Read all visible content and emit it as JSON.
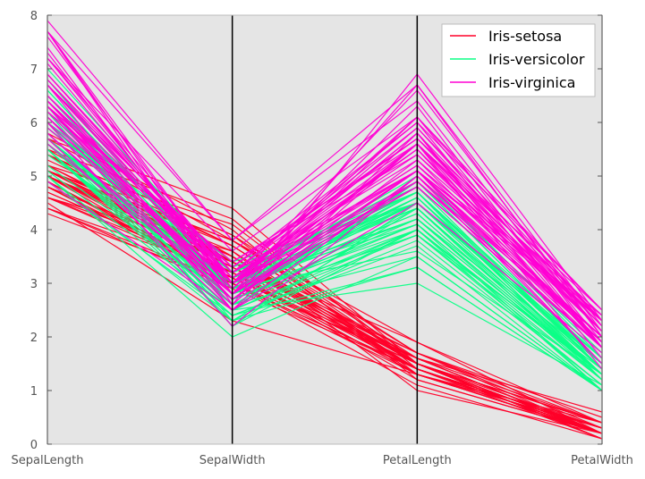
{
  "chart_data": {
    "type": "line",
    "subtype": "parallel-coordinates",
    "title": "",
    "xlabel": "",
    "ylabel": "",
    "axes": [
      "SepalLength",
      "SepalWidth",
      "PetalLength",
      "PetalWidth"
    ],
    "ylim": [
      0,
      8
    ],
    "yticks": [
      0,
      1,
      2,
      3,
      4,
      5,
      6,
      7,
      8
    ],
    "grid": false,
    "background": "#e5e5e5",
    "legend_position": "top-right",
    "series": [
      {
        "name": "Iris-setosa",
        "color": "#ff0029",
        "rows": [
          [
            5.1,
            3.5,
            1.4,
            0.2
          ],
          [
            4.9,
            3.0,
            1.4,
            0.2
          ],
          [
            4.7,
            3.2,
            1.3,
            0.2
          ],
          [
            4.6,
            3.1,
            1.5,
            0.2
          ],
          [
            5.0,
            3.6,
            1.4,
            0.2
          ],
          [
            5.4,
            3.9,
            1.7,
            0.4
          ],
          [
            4.6,
            3.4,
            1.4,
            0.3
          ],
          [
            5.0,
            3.4,
            1.5,
            0.2
          ],
          [
            4.4,
            2.9,
            1.4,
            0.2
          ],
          [
            4.9,
            3.1,
            1.5,
            0.1
          ],
          [
            5.4,
            3.7,
            1.5,
            0.2
          ],
          [
            4.8,
            3.4,
            1.6,
            0.2
          ],
          [
            4.8,
            3.0,
            1.4,
            0.1
          ],
          [
            4.3,
            3.0,
            1.1,
            0.1
          ],
          [
            5.8,
            4.0,
            1.2,
            0.2
          ],
          [
            5.7,
            4.4,
            1.5,
            0.4
          ],
          [
            5.4,
            3.9,
            1.3,
            0.4
          ],
          [
            5.1,
            3.5,
            1.4,
            0.3
          ],
          [
            5.7,
            3.8,
            1.7,
            0.3
          ],
          [
            5.1,
            3.8,
            1.5,
            0.3
          ],
          [
            5.4,
            3.4,
            1.7,
            0.2
          ],
          [
            5.1,
            3.7,
            1.5,
            0.4
          ],
          [
            4.6,
            3.6,
            1.0,
            0.2
          ],
          [
            5.1,
            3.3,
            1.7,
            0.5
          ],
          [
            4.8,
            3.4,
            1.9,
            0.2
          ],
          [
            5.0,
            3.0,
            1.6,
            0.2
          ],
          [
            5.0,
            3.4,
            1.6,
            0.4
          ],
          [
            5.2,
            3.5,
            1.5,
            0.2
          ],
          [
            5.2,
            3.4,
            1.4,
            0.2
          ],
          [
            4.7,
            3.2,
            1.6,
            0.2
          ],
          [
            4.8,
            3.1,
            1.6,
            0.2
          ],
          [
            5.4,
            3.4,
            1.5,
            0.4
          ],
          [
            5.2,
            4.1,
            1.5,
            0.1
          ],
          [
            5.5,
            4.2,
            1.4,
            0.2
          ],
          [
            4.9,
            3.1,
            1.5,
            0.1
          ],
          [
            5.0,
            3.2,
            1.2,
            0.2
          ],
          [
            5.5,
            3.5,
            1.3,
            0.2
          ],
          [
            4.9,
            3.1,
            1.5,
            0.1
          ],
          [
            4.4,
            3.0,
            1.3,
            0.2
          ],
          [
            5.1,
            3.4,
            1.5,
            0.2
          ],
          [
            5.0,
            3.5,
            1.3,
            0.3
          ],
          [
            4.5,
            2.3,
            1.3,
            0.3
          ],
          [
            4.4,
            3.2,
            1.3,
            0.2
          ],
          [
            5.0,
            3.5,
            1.6,
            0.6
          ],
          [
            5.1,
            3.8,
            1.9,
            0.4
          ],
          [
            4.8,
            3.0,
            1.4,
            0.3
          ],
          [
            5.1,
            3.8,
            1.6,
            0.2
          ],
          [
            4.6,
            3.2,
            1.4,
            0.2
          ],
          [
            5.3,
            3.7,
            1.5,
            0.2
          ],
          [
            5.0,
            3.3,
            1.4,
            0.2
          ]
        ]
      },
      {
        "name": "Iris-versicolor",
        "color": "#0bff86",
        "rows": [
          [
            7.0,
            3.2,
            4.7,
            1.4
          ],
          [
            6.4,
            3.2,
            4.5,
            1.5
          ],
          [
            6.9,
            3.1,
            4.9,
            1.5
          ],
          [
            5.5,
            2.3,
            4.0,
            1.3
          ],
          [
            6.5,
            2.8,
            4.6,
            1.5
          ],
          [
            5.7,
            2.8,
            4.5,
            1.3
          ],
          [
            6.3,
            3.3,
            4.7,
            1.6
          ],
          [
            4.9,
            2.4,
            3.3,
            1.0
          ],
          [
            6.6,
            2.9,
            4.6,
            1.3
          ],
          [
            5.2,
            2.7,
            3.9,
            1.4
          ],
          [
            5.0,
            2.0,
            3.5,
            1.0
          ],
          [
            5.9,
            3.0,
            4.2,
            1.5
          ],
          [
            6.0,
            2.2,
            4.0,
            1.0
          ],
          [
            6.1,
            2.9,
            4.7,
            1.4
          ],
          [
            5.6,
            2.9,
            3.6,
            1.3
          ],
          [
            6.7,
            3.1,
            4.4,
            1.4
          ],
          [
            5.6,
            3.0,
            4.5,
            1.5
          ],
          [
            5.8,
            2.7,
            4.1,
            1.0
          ],
          [
            6.2,
            2.2,
            4.5,
            1.5
          ],
          [
            5.6,
            2.5,
            3.9,
            1.1
          ],
          [
            5.9,
            3.2,
            4.8,
            1.8
          ],
          [
            6.1,
            2.8,
            4.0,
            1.3
          ],
          [
            6.3,
            2.5,
            4.9,
            1.5
          ],
          [
            6.1,
            2.8,
            4.7,
            1.2
          ],
          [
            6.4,
            2.9,
            4.3,
            1.3
          ],
          [
            6.6,
            3.0,
            4.4,
            1.4
          ],
          [
            6.8,
            2.8,
            4.8,
            1.4
          ],
          [
            6.7,
            3.0,
            5.0,
            1.7
          ],
          [
            6.0,
            2.9,
            4.5,
            1.5
          ],
          [
            5.7,
            2.6,
            3.5,
            1.0
          ],
          [
            5.5,
            2.4,
            3.8,
            1.1
          ],
          [
            5.5,
            2.4,
            3.7,
            1.0
          ],
          [
            5.8,
            2.7,
            3.9,
            1.2
          ],
          [
            6.0,
            2.7,
            5.1,
            1.6
          ],
          [
            5.4,
            3.0,
            4.5,
            1.5
          ],
          [
            6.0,
            3.4,
            4.5,
            1.6
          ],
          [
            6.7,
            3.1,
            4.7,
            1.5
          ],
          [
            6.3,
            2.3,
            4.4,
            1.3
          ],
          [
            5.6,
            3.0,
            4.1,
            1.3
          ],
          [
            5.5,
            2.5,
            4.0,
            1.3
          ],
          [
            5.5,
            2.6,
            4.4,
            1.2
          ],
          [
            6.1,
            3.0,
            4.6,
            1.4
          ],
          [
            5.8,
            2.6,
            4.0,
            1.2
          ],
          [
            5.0,
            2.3,
            3.3,
            1.0
          ],
          [
            5.6,
            2.7,
            4.2,
            1.3
          ],
          [
            5.7,
            3.0,
            4.2,
            1.2
          ],
          [
            5.7,
            2.9,
            4.2,
            1.3
          ],
          [
            6.2,
            2.9,
            4.3,
            1.3
          ],
          [
            5.1,
            2.5,
            3.0,
            1.1
          ],
          [
            5.7,
            2.8,
            4.1,
            1.3
          ]
        ]
      },
      {
        "name": "Iris-virginica",
        "color": "#ff00d4",
        "rows": [
          [
            6.3,
            3.3,
            6.0,
            2.5
          ],
          [
            5.8,
            2.7,
            5.1,
            1.9
          ],
          [
            7.1,
            3.0,
            5.9,
            2.1
          ],
          [
            6.3,
            2.9,
            5.6,
            1.8
          ],
          [
            6.5,
            3.0,
            5.8,
            2.2
          ],
          [
            7.6,
            3.0,
            6.6,
            2.1
          ],
          [
            4.9,
            2.5,
            4.5,
            1.7
          ],
          [
            7.3,
            2.9,
            6.3,
            1.8
          ],
          [
            6.7,
            2.5,
            5.8,
            1.8
          ],
          [
            7.2,
            3.6,
            6.1,
            2.5
          ],
          [
            6.5,
            3.2,
            5.1,
            2.0
          ],
          [
            6.4,
            2.7,
            5.3,
            1.9
          ],
          [
            6.8,
            3.0,
            5.5,
            2.1
          ],
          [
            5.7,
            2.5,
            5.0,
            2.0
          ],
          [
            5.8,
            2.8,
            5.1,
            2.4
          ],
          [
            6.4,
            3.2,
            5.3,
            2.3
          ],
          [
            6.5,
            3.0,
            5.5,
            1.8
          ],
          [
            7.7,
            3.8,
            6.7,
            2.2
          ],
          [
            7.7,
            2.6,
            6.9,
            2.3
          ],
          [
            6.0,
            2.2,
            5.0,
            1.5
          ],
          [
            6.9,
            3.2,
            5.7,
            2.3
          ],
          [
            5.6,
            2.8,
            4.9,
            2.0
          ],
          [
            7.7,
            2.8,
            6.7,
            2.0
          ],
          [
            6.3,
            2.7,
            4.9,
            1.8
          ],
          [
            6.7,
            3.3,
            5.7,
            2.1
          ],
          [
            7.2,
            3.2,
            6.0,
            1.8
          ],
          [
            6.2,
            2.8,
            4.8,
            1.8
          ],
          [
            6.1,
            3.0,
            4.9,
            1.8
          ],
          [
            6.4,
            2.8,
            5.6,
            2.1
          ],
          [
            7.2,
            3.0,
            5.8,
            1.6
          ],
          [
            7.4,
            2.8,
            6.1,
            1.9
          ],
          [
            7.9,
            3.8,
            6.4,
            2.0
          ],
          [
            6.4,
            2.8,
            5.6,
            2.2
          ],
          [
            6.3,
            2.8,
            5.1,
            1.5
          ],
          [
            6.1,
            2.6,
            5.6,
            1.4
          ],
          [
            7.7,
            3.0,
            6.1,
            2.3
          ],
          [
            6.3,
            3.4,
            5.6,
            2.4
          ],
          [
            6.4,
            3.1,
            5.5,
            1.8
          ],
          [
            6.0,
            3.0,
            4.8,
            1.8
          ],
          [
            6.9,
            3.1,
            5.4,
            2.1
          ],
          [
            6.7,
            3.1,
            5.6,
            2.4
          ],
          [
            6.9,
            3.1,
            5.1,
            2.3
          ],
          [
            5.8,
            2.7,
            5.1,
            1.9
          ],
          [
            6.8,
            3.2,
            5.9,
            2.3
          ],
          [
            6.7,
            3.3,
            5.7,
            2.5
          ],
          [
            6.7,
            3.0,
            5.2,
            2.3
          ],
          [
            6.3,
            2.5,
            5.0,
            1.9
          ],
          [
            6.5,
            3.0,
            5.2,
            2.0
          ],
          [
            6.2,
            3.4,
            5.4,
            2.3
          ],
          [
            5.9,
            3.0,
            5.1,
            1.8
          ]
        ]
      }
    ]
  }
}
